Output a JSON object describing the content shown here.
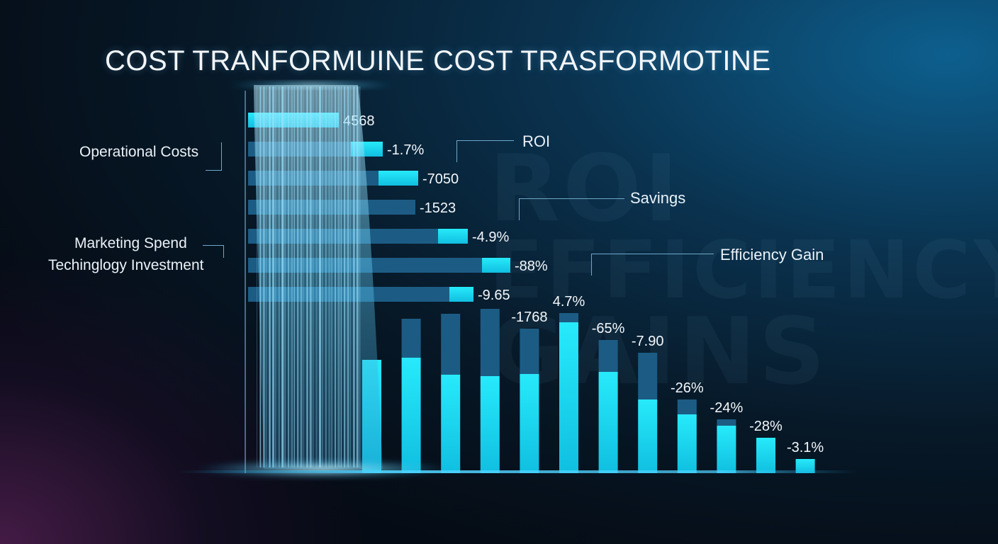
{
  "title": "COST TRANFORMUINE COST TRASFORMOTINE",
  "watermark": [
    "ROI",
    "EFFICIENCY",
    "GAINS"
  ],
  "annotations": {
    "operational_costs": "Operational Costs",
    "marketing_spend": "Marketing Spend",
    "technology_investment": "Techinglogy Investment",
    "roi": "ROI",
    "savings": "Savings",
    "efficiency_gain": "Efficiency Gain"
  },
  "colors": {
    "bar_bright": "#18e2f6",
    "bar_dark": "#1c5c84",
    "background": "#060d18",
    "waterfall": "#9fe4ff"
  },
  "chart_data": {
    "type": "bar",
    "title": "COST TRANFORMUINE COST TRASFORMOTINE",
    "horizontal_bars": {
      "labels": [
        "4568",
        "-1.7%",
        "-7050",
        "-1523",
        "-4.9%",
        "-88%",
        "-9.65"
      ],
      "total_length": [
        128,
        190,
        240,
        236,
        310,
        370,
        318
      ],
      "highlight_length": [
        128,
        45,
        56,
        0,
        42,
        40,
        34
      ]
    },
    "vertical_bars": {
      "labels": [
        "",
        "",
        "",
        "",
        "-1768",
        "4.7%",
        "-65%",
        "-7.90",
        "-26%",
        "-24%",
        "-28%",
        "-3.1%"
      ],
      "total_height": [
        160,
        218,
        225,
        232,
        204,
        226,
        188,
        170,
        104,
        76,
        50,
        20
      ],
      "highlight_height": [
        160,
        163,
        139,
        137,
        140,
        213,
        143,
        104,
        83,
        67,
        50,
        20
      ]
    }
  }
}
